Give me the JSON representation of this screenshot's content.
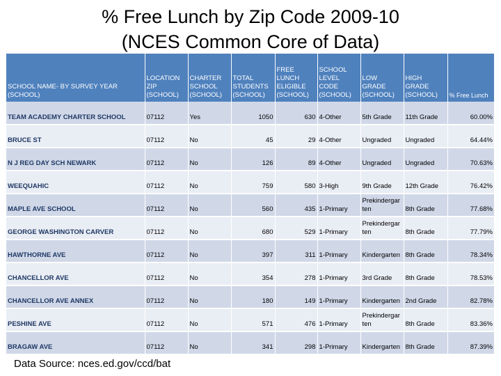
{
  "slide": {
    "title_line1": "% Free Lunch by Zip Code 2009-10",
    "title_line2": "(NCES Common Core of Data)",
    "source": "Data Source: nces.ed.gov/ccd/bat"
  },
  "table": {
    "headers": [
      [
        "SCHOOL NAME- BY SURVEY YEAR",
        "(SCHOOL)"
      ],
      [
        "LOCATION",
        "ZIP",
        "(SCHOOL)"
      ],
      [
        "CHARTER",
        "SCHOOL",
        "(SCHOOL)"
      ],
      [
        "TOTAL",
        "STUDENTS",
        "(SCHOOL)"
      ],
      [
        "FREE LUNCH",
        "ELIGIBLE",
        "(SCHOOL)"
      ],
      [
        "SCHOOL",
        "LEVEL CODE",
        "(SCHOOL)"
      ],
      [
        "LOW GRADE",
        "(SCHOOL)"
      ],
      [
        "HIGH GRADE",
        "(SCHOOL)"
      ],
      [
        "% Free Lunch"
      ]
    ],
    "rows": [
      [
        "TEAM ACADEMY CHARTER SCHOOL",
        "07112",
        "Yes",
        "1050",
        "630",
        "4-Other",
        "5th Grade",
        "11th Grade",
        "60.00%"
      ],
      [
        "BRUCE ST",
        "07112",
        "No",
        "45",
        "29",
        "4-Other",
        "Ungraded",
        "Ungraded",
        "64.44%"
      ],
      [
        "N J REG DAY SCH NEWARK",
        "07112",
        "No",
        "126",
        "89",
        "4-Other",
        "Ungraded",
        "Ungraded",
        "70.63%"
      ],
      [
        "WEEQUAHIC",
        "07112",
        "No",
        "759",
        "580",
        "3-High",
        "9th Grade",
        "12th Grade",
        "76.42%"
      ],
      [
        "MAPLE AVE SCHOOL",
        "07112",
        "No",
        "560",
        "435",
        "1-Primary",
        "Prekindergarten",
        "8th Grade",
        "77.68%"
      ],
      [
        "GEORGE WASHINGTON CARVER",
        "07112",
        "No",
        "680",
        "529",
        "1-Primary",
        "Prekindergarten",
        "8th Grade",
        "77.79%"
      ],
      [
        "HAWTHORNE AVE",
        "07112",
        "No",
        "397",
        "311",
        "1-Primary",
        "Kindergarten",
        "8th Grade",
        "78.34%"
      ],
      [
        "CHANCELLOR AVE",
        "07112",
        "No",
        "354",
        "278",
        "1-Primary",
        "3rd Grade",
        "8th Grade",
        "78.53%"
      ],
      [
        "CHANCELLOR AVE ANNEX",
        "07112",
        "No",
        "180",
        "149",
        "1-Primary",
        "Kindergarten",
        "2nd Grade",
        "82.78%"
      ],
      [
        "PESHINE AVE",
        "07112",
        "No",
        "571",
        "476",
        "1-Primary",
        "Prekindergarten",
        "8th Grade",
        "83.36%"
      ],
      [
        "BRAGAW AVE",
        "07112",
        "No",
        "341",
        "298",
        "1-Primary",
        "Kindergarten",
        "8th Grade",
        "87.39%"
      ]
    ]
  }
}
